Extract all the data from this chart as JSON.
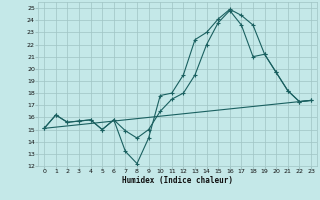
{
  "xlabel": "Humidex (Indice chaleur)",
  "bg_color": "#c4e8e8",
  "grid_color": "#a0c4c4",
  "line_color": "#1a6060",
  "xlim": [
    -0.5,
    23.5
  ],
  "ylim": [
    12,
    25.5
  ],
  "xticks": [
    0,
    1,
    2,
    3,
    4,
    5,
    6,
    7,
    8,
    9,
    10,
    11,
    12,
    13,
    14,
    15,
    16,
    17,
    18,
    19,
    20,
    21,
    22,
    23
  ],
  "yticks": [
    12,
    13,
    14,
    15,
    16,
    17,
    18,
    19,
    20,
    21,
    22,
    23,
    24,
    25
  ],
  "curve1_x": [
    0,
    1,
    2,
    3,
    4,
    5,
    6,
    7,
    8,
    9,
    10,
    11,
    12,
    13,
    14,
    15,
    16,
    17,
    18,
    19,
    20,
    21,
    22,
    23
  ],
  "curve1_y": [
    15.1,
    16.2,
    15.6,
    15.7,
    15.8,
    15.0,
    15.8,
    13.2,
    12.2,
    14.3,
    17.8,
    18.0,
    19.5,
    22.4,
    23.0,
    24.1,
    24.9,
    24.4,
    23.6,
    21.2,
    19.7,
    18.2,
    17.3,
    17.4
  ],
  "curve2_x": [
    0,
    1,
    2,
    3,
    4,
    5,
    6,
    7,
    8,
    9,
    10,
    11,
    12,
    13,
    14,
    15,
    16,
    17,
    18,
    19,
    20,
    21,
    22,
    23
  ],
  "curve2_y": [
    15.1,
    16.2,
    15.6,
    15.7,
    15.8,
    15.0,
    15.8,
    14.9,
    14.3,
    15.0,
    16.5,
    17.5,
    18.0,
    19.5,
    22.0,
    23.8,
    24.8,
    23.6,
    21.0,
    21.2,
    19.7,
    18.2,
    17.3,
    17.4
  ],
  "curve3_x": [
    0,
    23
  ],
  "curve3_y": [
    15.1,
    17.4
  ]
}
